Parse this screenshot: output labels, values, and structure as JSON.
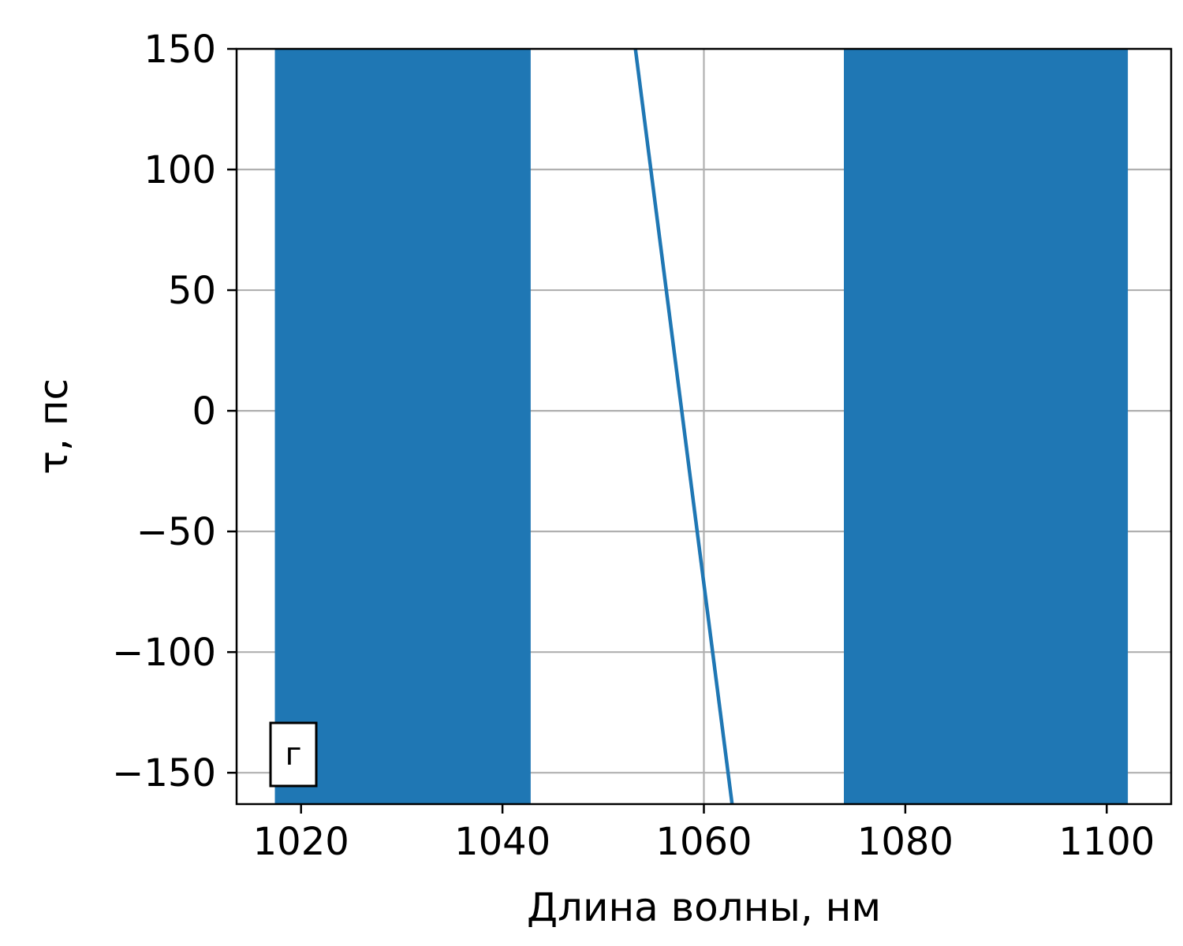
{
  "chart_data": {
    "type": "line",
    "title": "",
    "xlabel": "Длина волны, нм",
    "ylabel": "τ, пс",
    "xlim": [
      1013.6,
      1106.4
    ],
    "ylim": [
      -163,
      150
    ],
    "xticks": [
      1020,
      1040,
      1060,
      1080,
      1100
    ],
    "yticks": [
      -150,
      -100,
      -50,
      0,
      50,
      100,
      150
    ],
    "xtick_labels": [
      "1020",
      "1040",
      "1060",
      "1080",
      "1100"
    ],
    "ytick_labels": [
      "−150",
      "−100",
      "−50",
      "0",
      "50",
      "100",
      "150"
    ],
    "grid": true,
    "bands": [
      {
        "x_start": 1017.4,
        "x_end": 1042.8
      },
      {
        "x_start": 1073.9,
        "x_end": 1102.1
      }
    ],
    "series": [
      {
        "x": [
          1053.2,
          1062.8
        ],
        "y": [
          150,
          -163
        ]
      }
    ],
    "annotation": "г",
    "colors": {
      "series": "#1f77b4",
      "band": "#1f77b4",
      "grid": "#b0b0b0",
      "axes": "#000000"
    }
  }
}
